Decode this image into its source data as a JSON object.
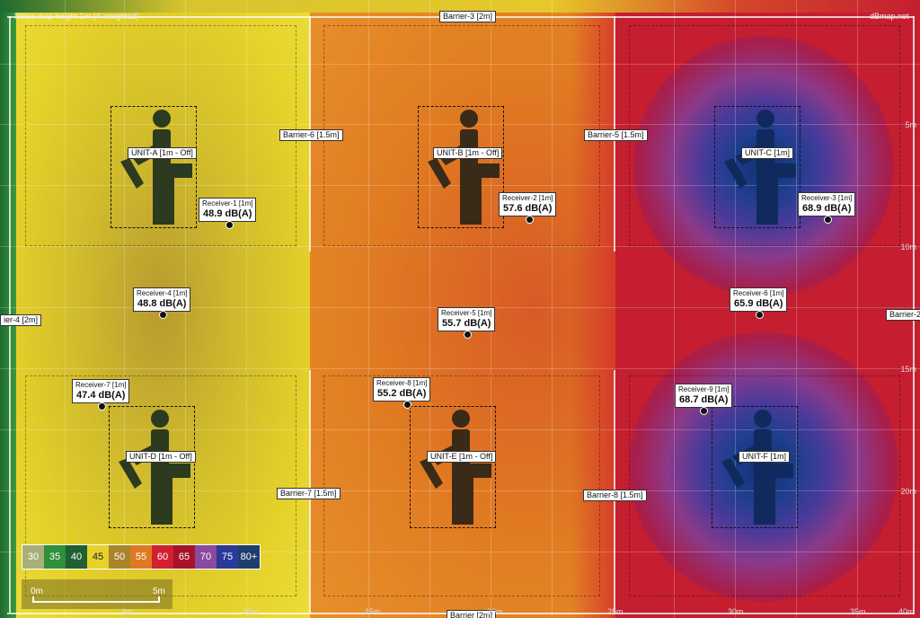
{
  "header": {
    "map_title": "Noise map height 1m (A-weighted)",
    "credit": "dBmap.net"
  },
  "barriers": [
    {
      "label": "Barrier-3 [2m]"
    },
    {
      "label": "Barrier-6 [1.5m]"
    },
    {
      "label": "Barrier-5 [1.5m]"
    },
    {
      "label": "ier-4 [2m]"
    },
    {
      "label": "Barrier-2"
    },
    {
      "label": "Barrier-7 [1.5m]"
    },
    {
      "label": "Barrier-8 [1.5m]"
    },
    {
      "label": "Barrier [2m]"
    }
  ],
  "units": [
    {
      "label": "UNIT-A [1m - Off]",
      "state": "off"
    },
    {
      "label": "UNIT-B [1m - Off]",
      "state": "off"
    },
    {
      "label": "UNIT-C [1m]",
      "state": "on"
    },
    {
      "label": "UNIT-D [1m - Off]",
      "state": "off"
    },
    {
      "label": "UNIT-E [1m - Off]",
      "state": "off"
    },
    {
      "label": "UNIT-F [1m]",
      "state": "on"
    }
  ],
  "receivers": [
    {
      "name": "Receiver-1 [1m]",
      "value": "48.9 dB(A)"
    },
    {
      "name": "Receiver-2 [1m]",
      "value": "57.6 dB(A)"
    },
    {
      "name": "Receiver-3 [1m]",
      "value": "68.9 dB(A)"
    },
    {
      "name": "Receiver-4 [1m]",
      "value": "48.8 dB(A)"
    },
    {
      "name": "Receiver-5 [1m]",
      "value": "55.7 dB(A)"
    },
    {
      "name": "Receiver-6 [1m]",
      "value": "65.9 dB(A)"
    },
    {
      "name": "Receiver-7 [1m]",
      "value": "47.4 dB(A)"
    },
    {
      "name": "Receiver-8 [1m]",
      "value": "55.2 dB(A)"
    },
    {
      "name": "Receiver-9 [1m]",
      "value": "68.7 dB(A)"
    }
  ],
  "legend": [
    {
      "label": "30",
      "color": "#a8b078"
    },
    {
      "label": "35",
      "color": "#2f8f3a"
    },
    {
      "label": "40",
      "color": "#1f5f32"
    },
    {
      "label": "45",
      "color": "#e6d22a"
    },
    {
      "label": "50",
      "color": "#a8842a"
    },
    {
      "label": "55",
      "color": "#e07a22"
    },
    {
      "label": "60",
      "color": "#d2202e"
    },
    {
      "label": "65",
      "color": "#a8122a"
    },
    {
      "label": "70",
      "color": "#8a4aa0"
    },
    {
      "label": "75",
      "color": "#2a3a9a"
    },
    {
      "label": "80+",
      "color": "#1e3e6e"
    }
  ],
  "scale_bar": {
    "start": "0m",
    "end": "5m"
  },
  "axis_right": [
    "5m",
    "10m",
    "15m",
    "20m"
  ],
  "axis_bottom": [
    "5m",
    "10m",
    "15m",
    "20m",
    "25m",
    "30m",
    "35m",
    "40m"
  ]
}
